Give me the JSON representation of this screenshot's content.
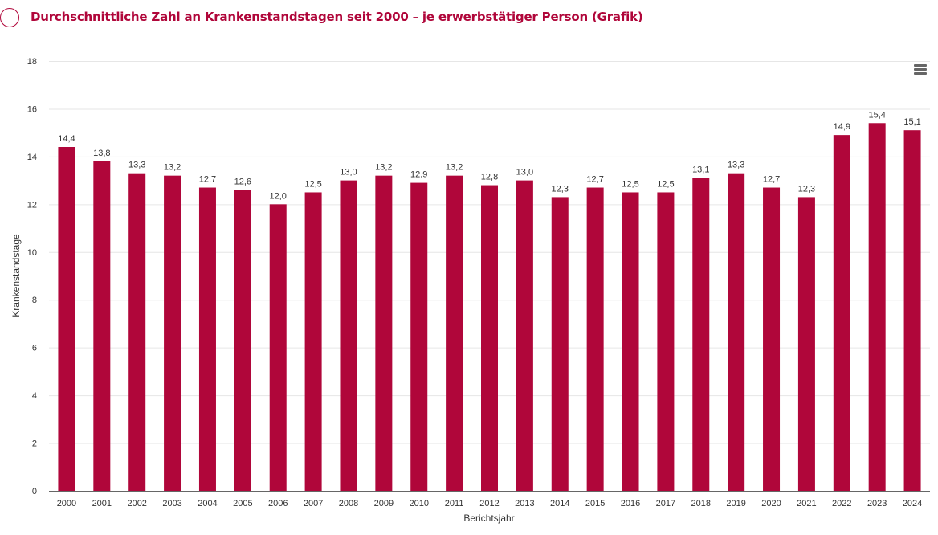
{
  "header": {
    "title": "Durchschnittliche Zahl an Krankenstandstagen seit 2000 – je erwerbstätiger Person (Grafik)",
    "toggle_icon": "minus-circle-icon"
  },
  "menu": {
    "icon": "hamburger-menu-icon"
  },
  "colors": {
    "bar": "#b0063a",
    "title": "#b0063a",
    "grid": "#e6e6e6",
    "axis": "#666666"
  },
  "chart_data": {
    "type": "bar",
    "title": "Durchschnittliche Zahl an Krankenstandstagen seit 2000 – je erwerbstätiger Person (Grafik)",
    "xlabel": "Berichtsjahr",
    "ylabel": "Krankenstandstage",
    "ylim": [
      0,
      18
    ],
    "yticks": [
      0,
      2,
      4,
      6,
      8,
      10,
      12,
      14,
      16,
      18
    ],
    "grid": true,
    "legend": "none",
    "categories": [
      "2000",
      "2001",
      "2002",
      "2003",
      "2004",
      "2005",
      "2006",
      "2007",
      "2008",
      "2009",
      "2010",
      "2011",
      "2012",
      "2013",
      "2014",
      "2015",
      "2016",
      "2017",
      "2018",
      "2019",
      "2020",
      "2021",
      "2022",
      "2023",
      "2024"
    ],
    "values": [
      14.4,
      13.8,
      13.3,
      13.2,
      12.7,
      12.6,
      12.0,
      12.5,
      13.0,
      13.2,
      12.9,
      13.2,
      12.8,
      13.0,
      12.3,
      12.7,
      12.5,
      12.5,
      13.1,
      13.3,
      12.7,
      12.3,
      14.9,
      15.4,
      15.1
    ],
    "data_labels": [
      "14,4",
      "13,8",
      "13,3",
      "13,2",
      "12,7",
      "12,6",
      "12,0",
      "12,5",
      "13,0",
      "13,2",
      "12,9",
      "13,2",
      "12,8",
      "13,0",
      "12,3",
      "12,7",
      "12,5",
      "12,5",
      "13,1",
      "13,3",
      "12,7",
      "12,3",
      "14,9",
      "15,4",
      "15,1"
    ]
  }
}
